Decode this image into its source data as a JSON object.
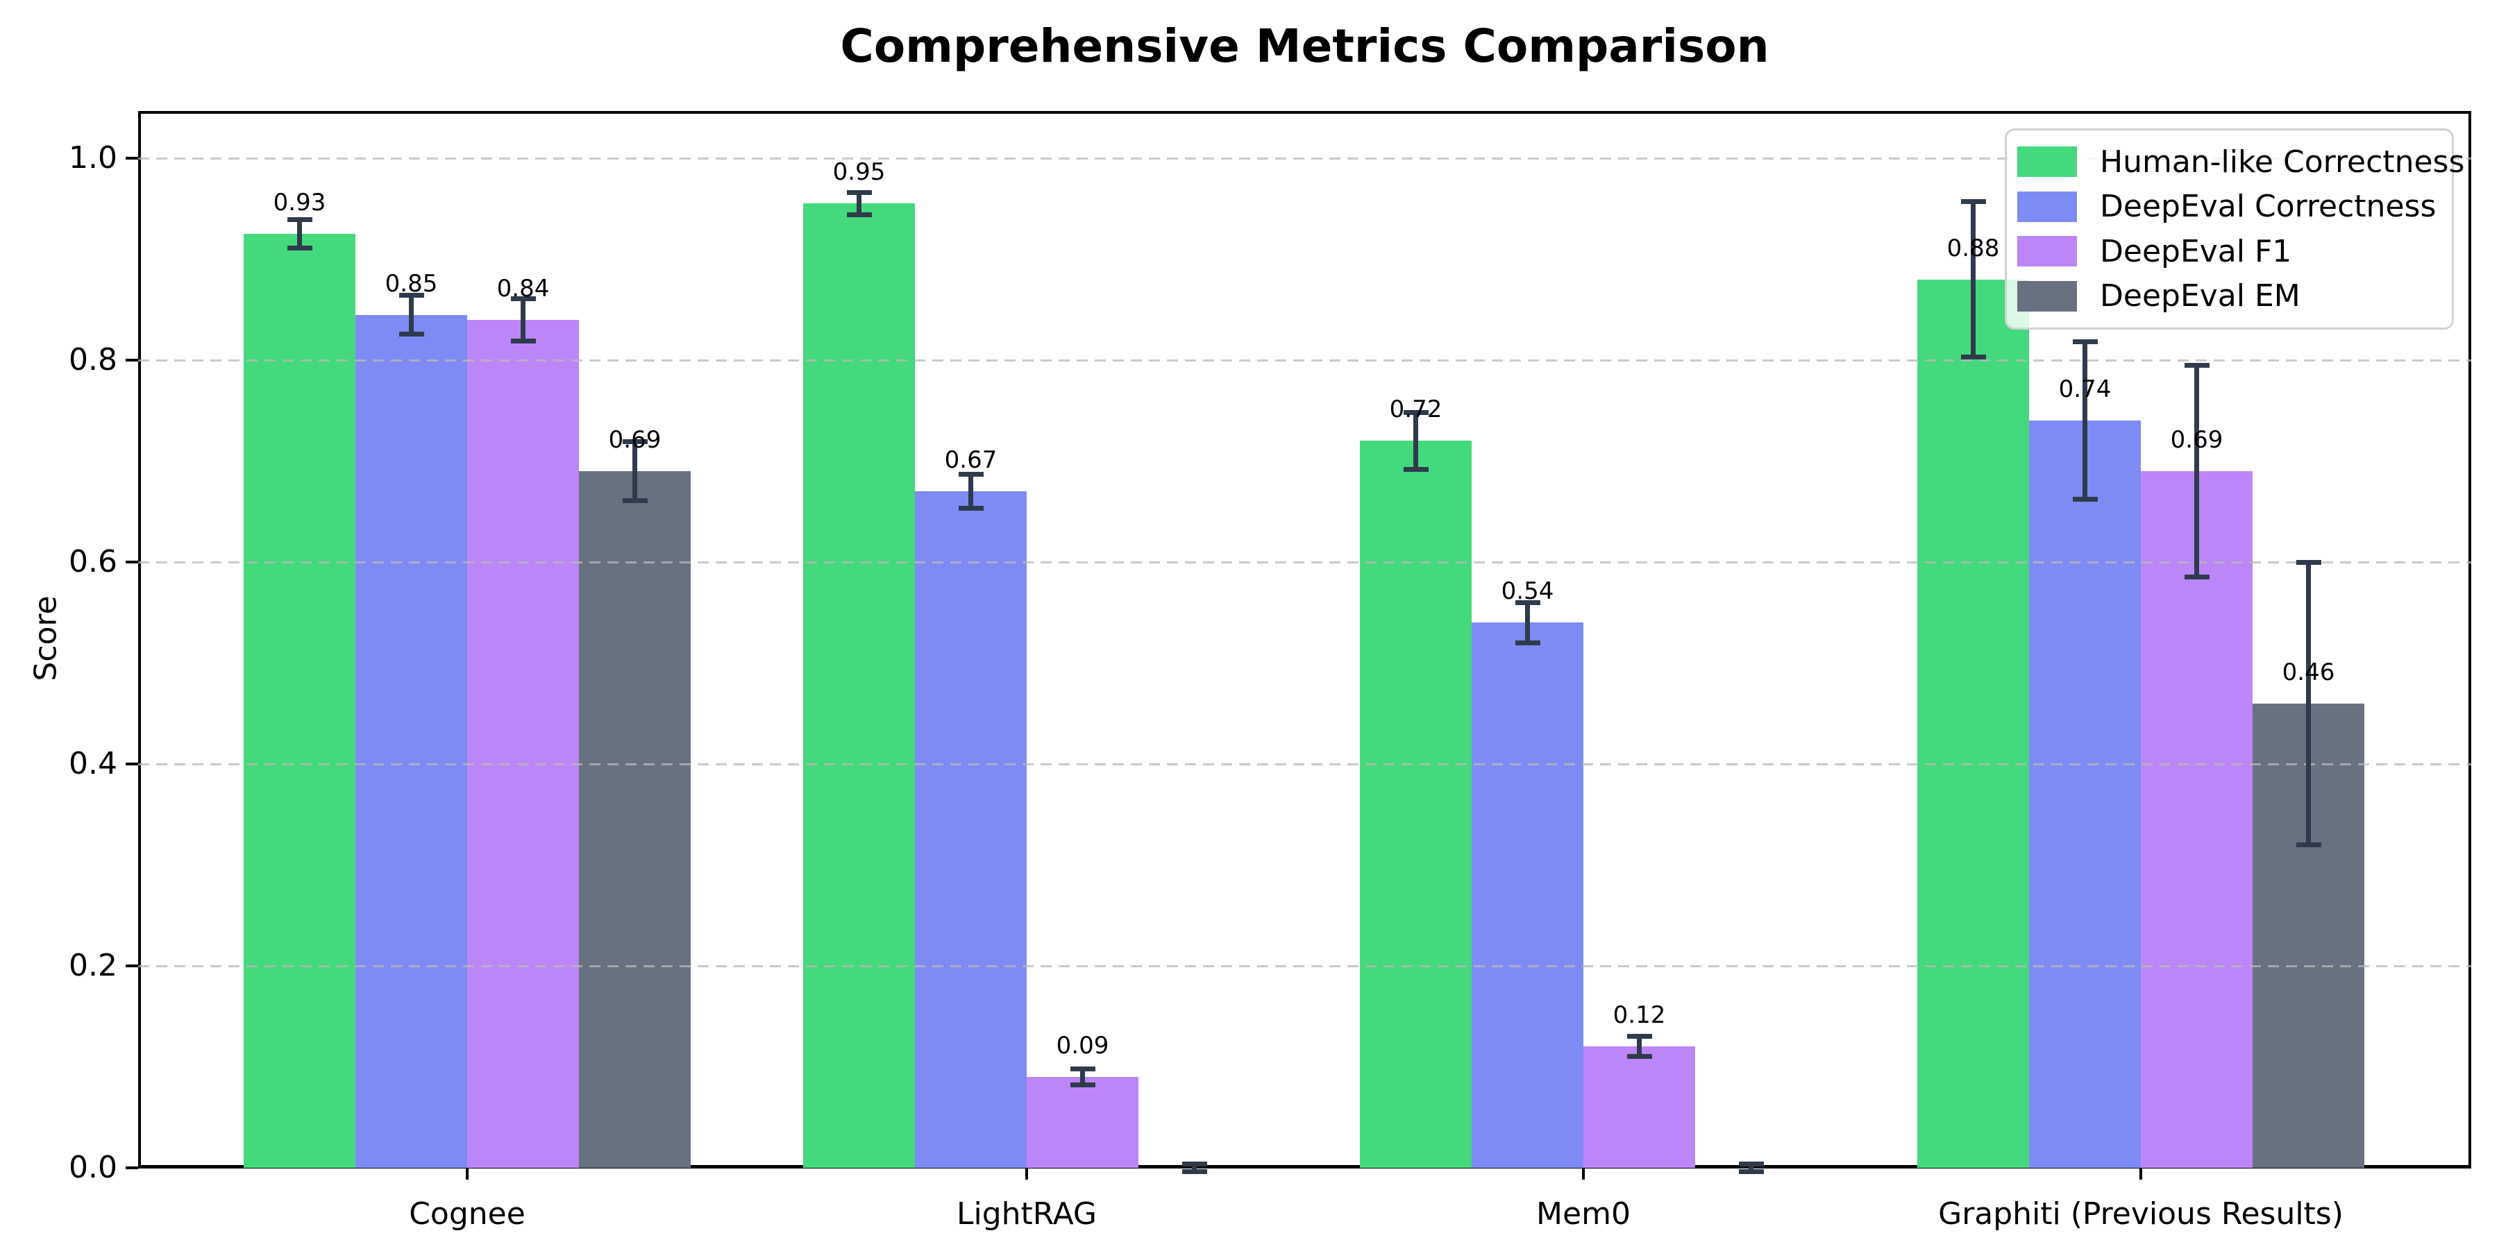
{
  "chart_data": {
    "type": "bar",
    "title": "Comprehensive Metrics Comparison",
    "xlabel": "",
    "ylabel": "Score",
    "categories": [
      "Cognee",
      "LightRAG",
      "Mem0",
      "Graphiti (Previous Results)"
    ],
    "y_ticks": [
      "0.0",
      "0.2",
      "0.4",
      "0.6",
      "0.8",
      "1.0"
    ],
    "y_tick_values": [
      0.0,
      0.2,
      0.4,
      0.6,
      0.8,
      1.0
    ],
    "ylim": [
      0,
      1.05
    ],
    "grid": "dashed-horizontal",
    "legend_position": "upper-right",
    "error_bars": true,
    "series": [
      {
        "name": "Human-like Correctness",
        "color": "#45d97d",
        "values": [
          0.925,
          0.955,
          0.72,
          0.88
        ],
        "errors": [
          0.014,
          0.011,
          0.028,
          0.077
        ],
        "labels": [
          "0.93",
          "0.95",
          "0.72",
          "0.88"
        ]
      },
      {
        "name": "DeepEval Correctness",
        "color": "#7f8bf5",
        "values": [
          0.845,
          0.67,
          0.54,
          0.74
        ],
        "errors": [
          0.019,
          0.017,
          0.02,
          0.078
        ],
        "labels": [
          "0.85",
          "0.67",
          "0.54",
          "0.74"
        ]
      },
      {
        "name": "DeepEval F1",
        "color": "#bd86f8",
        "values": [
          0.84,
          0.09,
          0.12,
          0.69
        ],
        "errors": [
          0.021,
          0.008,
          0.01,
          0.105
        ],
        "labels": [
          "0.84",
          "0.09",
          "0.12",
          "0.69"
        ]
      },
      {
        "name": "DeepEval EM",
        "color": "#687180",
        "values": [
          0.69,
          0.0,
          0.0,
          0.46
        ],
        "errors": [
          0.029,
          0.004,
          0.004,
          0.14
        ],
        "labels": [
          "0.69",
          "",
          "",
          "0.46"
        ]
      }
    ],
    "colors": {
      "error_bar": "#2f3b4c",
      "gridline": "#c9c9c9",
      "spine": "#000000",
      "background": "#ffffff"
    }
  }
}
